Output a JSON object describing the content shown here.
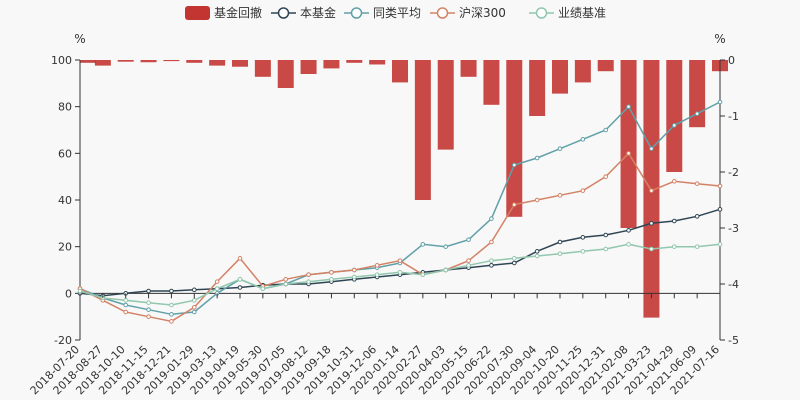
{
  "chart_data": {
    "type": "line",
    "legend": [
      {
        "name": "基金回撤",
        "icon": "bar",
        "color": "#c23531"
      },
      {
        "name": "本基金",
        "icon": "line-marker",
        "color": "#2f4554"
      },
      {
        "name": "同类平均",
        "icon": "line-marker",
        "color": "#61a0a8"
      },
      {
        "name": "沪深300",
        "icon": "line-marker",
        "color": "#d48265"
      },
      {
        "name": "业绩基准",
        "icon": "line-marker",
        "color": "#91c7ae"
      }
    ],
    "legend_position": "top-center",
    "left_axis": {
      "unit": "%",
      "min": -20,
      "max": 100,
      "ticks": [
        -20,
        0,
        20,
        40,
        60,
        80,
        100
      ]
    },
    "right_axis": {
      "unit": "%",
      "min": -5,
      "max": 0,
      "ticks": [
        -5,
        -4,
        -3,
        -2,
        -1,
        0
      ],
      "inverted": true
    },
    "x_tick_labels": [
      "2018-07-20",
      "2018-08-27",
      "2018-10-10",
      "2018-11-15",
      "2018-12-21",
      "2019-01-29",
      "2019-03-13",
      "2019-04-19",
      "2019-05-30",
      "2019-07-05",
      "2019-08-12",
      "2019-09-18",
      "2019-10-31",
      "2019-12-06",
      "2020-01-14",
      "2020-02-27",
      "2020-04-03",
      "2020-05-15",
      "2020-06-22",
      "2020-07-30",
      "2020-09-04",
      "2020-10-20",
      "2020-11-25",
      "2020-12-31",
      "2021-02-08",
      "2021-03-23",
      "2021-04-29",
      "2021-06-09",
      "2021-07-16"
    ],
    "grid": false,
    "series": [
      {
        "name": "本基金",
        "axis": "left",
        "color": "#2f4554",
        "values": [
          0,
          -1,
          0,
          1,
          1,
          1.5,
          2,
          2.5,
          3.5,
          4,
          4,
          5,
          6,
          7,
          8,
          9,
          10,
          11,
          12,
          13,
          18,
          22,
          24,
          25,
          27,
          30,
          31,
          33,
          36
        ]
      },
      {
        "name": "同类平均",
        "axis": "left",
        "color": "#61a0a8",
        "values": [
          2,
          -2,
          -5,
          -7,
          -9,
          -8,
          0,
          6,
          2,
          4,
          8,
          9,
          10,
          11,
          13,
          21,
          20,
          23,
          32,
          55,
          58,
          62,
          66,
          70,
          80,
          62,
          72,
          77,
          82
        ]
      },
      {
        "name": "沪深300",
        "axis": "left",
        "color": "#d48265",
        "values": [
          2,
          -3,
          -8,
          -10,
          -12,
          -6,
          5,
          15,
          3,
          6,
          8,
          9,
          10,
          12,
          14,
          8,
          10,
          14,
          22,
          38,
          40,
          42,
          44,
          50,
          60,
          44,
          48,
          47,
          46
        ]
      },
      {
        "name": "业绩基准",
        "axis": "left",
        "color": "#91c7ae",
        "values": [
          1,
          -2,
          -3,
          -4,
          -5,
          -3,
          2,
          6,
          2,
          4,
          5,
          6,
          7,
          8,
          9,
          8,
          10,
          12,
          14,
          15,
          16,
          17,
          18,
          19,
          21,
          19,
          20,
          20,
          21
        ]
      },
      {
        "name": "基金回撤",
        "axis": "right",
        "type": "bar",
        "color": "#c23531",
        "values": [
          -0.05,
          -0.1,
          -0.03,
          -0.04,
          -0.02,
          -0.05,
          -0.1,
          -0.12,
          -0.3,
          -0.5,
          -0.25,
          -0.15,
          -0.05,
          -0.08,
          -0.4,
          -2.5,
          -1.6,
          -0.3,
          -0.8,
          -2.8,
          -1.0,
          -0.6,
          -0.4,
          -0.2,
          -3.0,
          -4.6,
          -2.0,
          -1.2,
          -0.2
        ]
      }
    ]
  }
}
